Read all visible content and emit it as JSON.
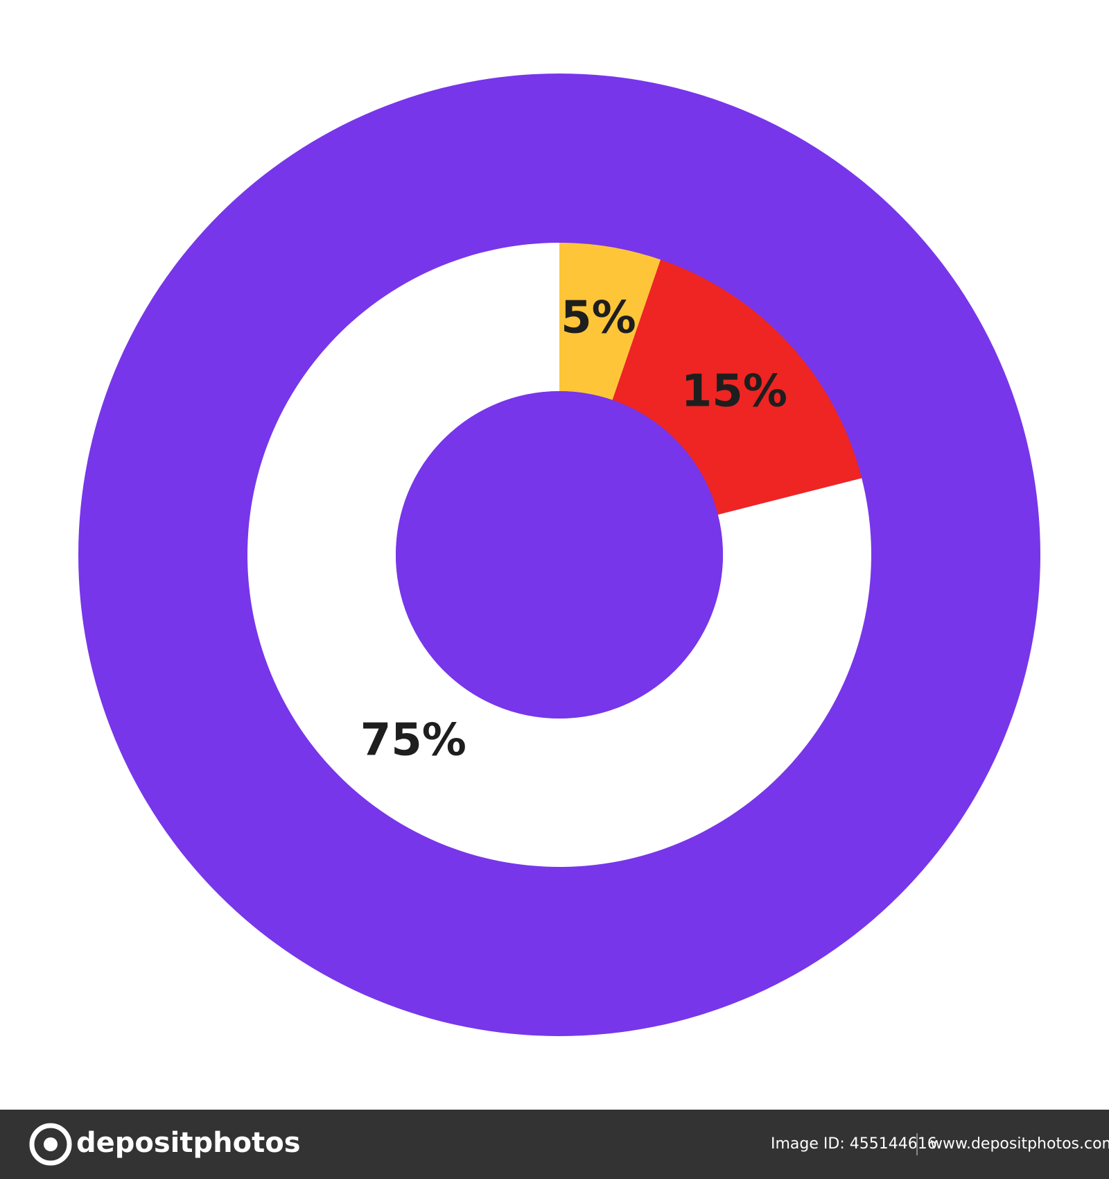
{
  "chart_data": {
    "type": "donut",
    "categories": [
      "5%",
      "15%",
      "75%"
    ],
    "values": [
      5,
      15,
      75
    ],
    "value_labels": [
      "5%",
      "15%",
      "75%"
    ],
    "colors": [
      "#ffc538",
      "#ee2522",
      "#ffffff"
    ]
  },
  "footer": {
    "logo": "depositphotos",
    "image_id": "Image ID: 455144616",
    "url": "www.depositphotos.com"
  }
}
